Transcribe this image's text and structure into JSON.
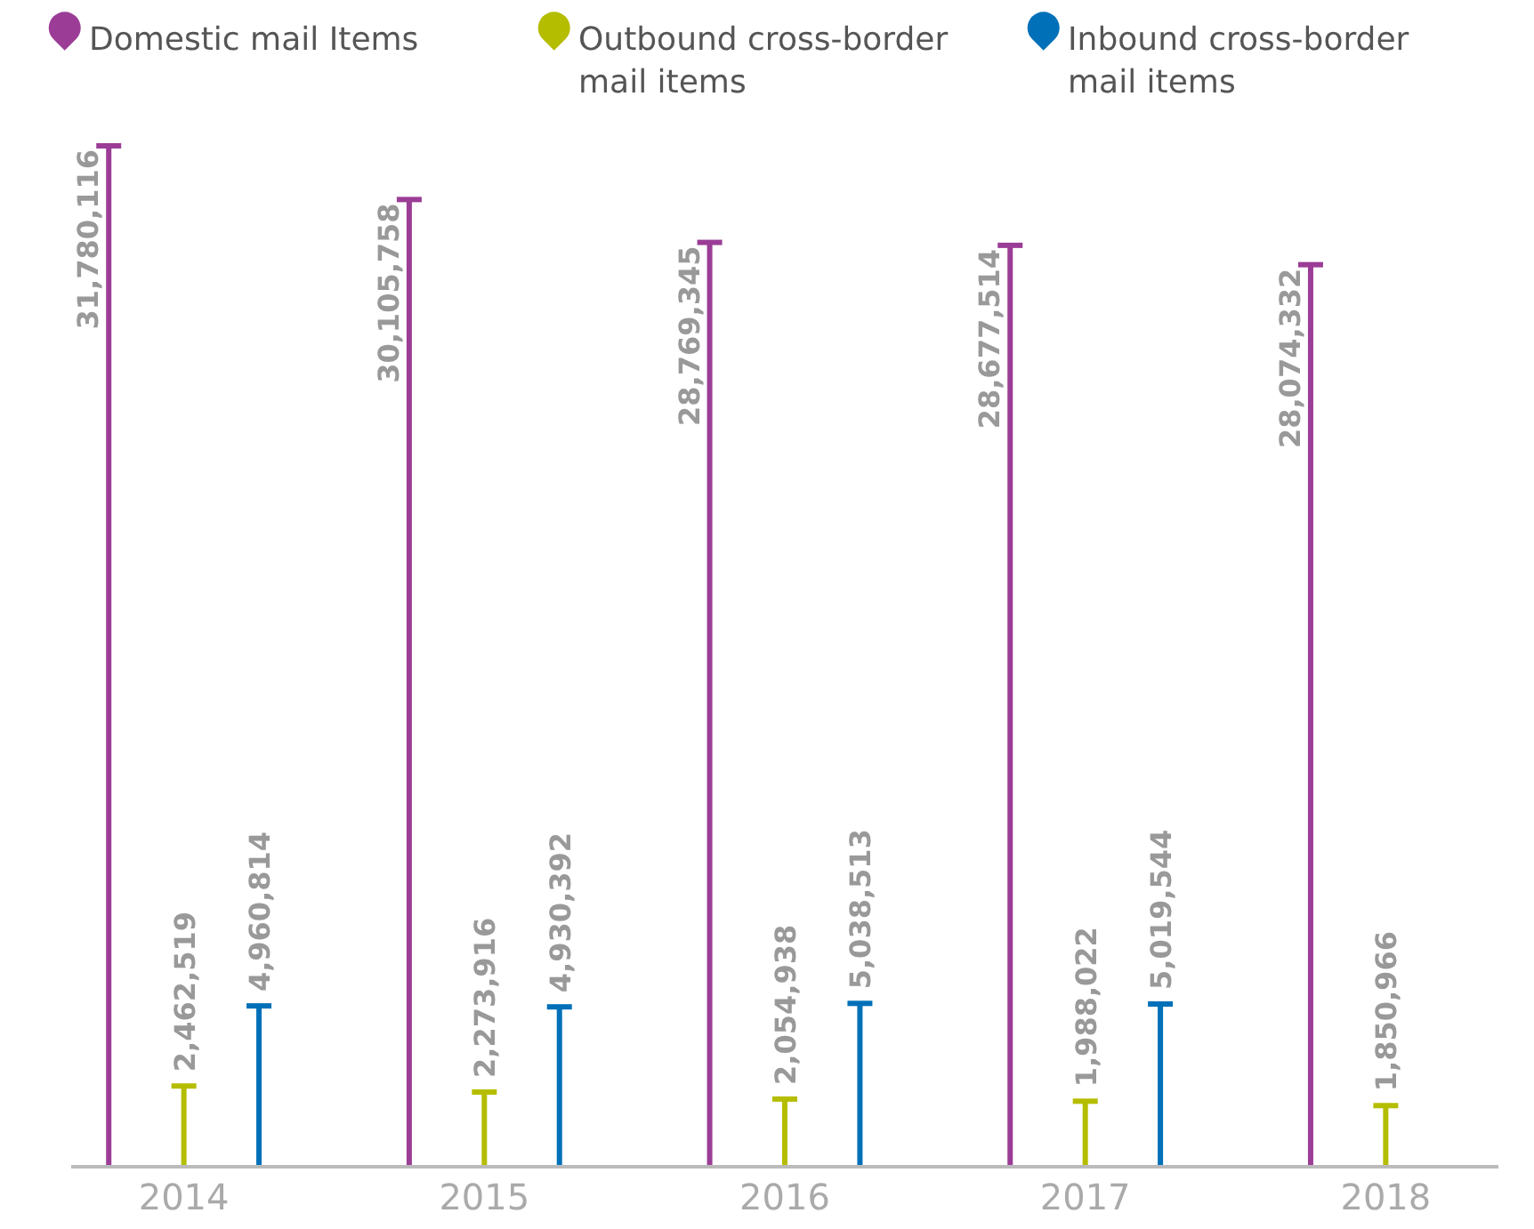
{
  "chart_data": {
    "type": "bar",
    "categories": [
      "2014",
      "2015",
      "2016",
      "2017",
      "2018"
    ],
    "series": [
      {
        "name": "Domestic mail Items",
        "color": "#9b3d96",
        "values": [
          31780116,
          30105758,
          28769345,
          28677514,
          28074332
        ],
        "value_labels": [
          "31,780,116",
          "30,105,758",
          "28,769,345",
          "28,677,514",
          "28,074,332"
        ]
      },
      {
        "name": "Outbound cross-border mail items",
        "color": "#b5bd00",
        "values": [
          2462519,
          2273916,
          2054938,
          1988022,
          1850966
        ],
        "value_labels": [
          "2,462,519",
          "2,273,916",
          "2,054,938",
          "1,988,022",
          "1,850,966"
        ]
      },
      {
        "name": "Inbound cross-border mail items",
        "color": "#0070b8",
        "values": [
          4960814,
          4930392,
          5038513,
          5019544,
          null
        ],
        "value_labels": [
          "4,960,814",
          "4,930,392",
          "5,038,513",
          "5,019,544",
          null
        ]
      }
    ],
    "legend": "top left"
  }
}
